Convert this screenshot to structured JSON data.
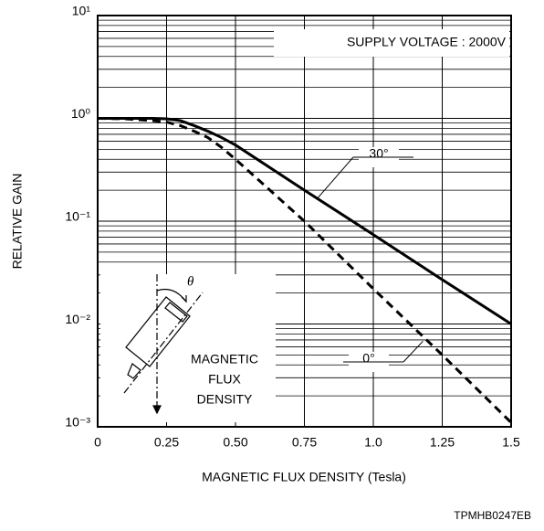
{
  "chart_data": {
    "type": "line",
    "title": "SUPPLY VOLTAGE : 2000V",
    "x_label": "MAGNETIC FLUX DENSITY  (Tesla)",
    "y_label": "RELATIVE GAIN",
    "code": "TPMHB0247EB",
    "inset": {
      "angle": "θ",
      "lines": [
        "MAGNETIC",
        "FLUX",
        "DENSITY"
      ]
    },
    "x": [
      0,
      0.1,
      0.2,
      0.25,
      0.3,
      0.35,
      0.4,
      0.45,
      0.5,
      0.75,
      1.0,
      1.25,
      1.5
    ],
    "series": [
      {
        "name": "30°",
        "color": "#000000",
        "dash": false,
        "values": [
          1,
          1,
          1,
          0.99,
          0.95,
          0.85,
          0.75,
          0.65,
          0.55,
          0.2,
          0.074,
          0.027,
          0.01
        ]
      },
      {
        "name": "0°",
        "color": "#000000",
        "dash": true,
        "values": [
          1,
          0.99,
          0.95,
          0.92,
          0.85,
          0.75,
          0.65,
          0.52,
          0.4,
          0.1,
          0.022,
          0.005,
          0.0011
        ]
      }
    ],
    "xlim": [
      0,
      1.5
    ],
    "xticks": [
      0,
      0.25,
      {
        "value": 0.5,
        "label": "0.50"
      },
      0.75,
      {
        "value": 1,
        "label": "1.0"
      },
      1.25,
      1.5
    ],
    "ylim": [
      0.001,
      10
    ],
    "yticks": [
      {
        "value": 10,
        "label": "10¹"
      },
      {
        "value": 1,
        "label": "10⁰"
      },
      {
        "value": 0.1,
        "label": "10⁻¹"
      },
      {
        "value": 0.01,
        "label": "10⁻²"
      },
      {
        "value": 0.001,
        "label": "10⁻³"
      }
    ],
    "log_y": true,
    "grid": true,
    "minor_grid": true
  }
}
